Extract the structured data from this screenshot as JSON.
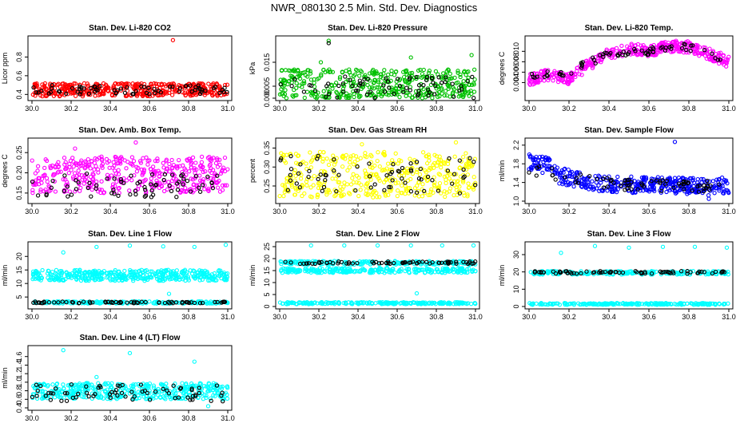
{
  "figure": {
    "title": "NWR_080130  2.5 Min. Std. Dev. Diagnostics"
  },
  "chart_data": [
    {
      "type": "scatter",
      "title": "Stan. Dev. Li-820 CO2",
      "ylabel": "Licor ppm",
      "xlim": [
        30.0,
        31.0
      ],
      "ylim": [
        0.36,
        1.0
      ],
      "xticks": [
        "30.0",
        "30.2",
        "30.4",
        "30.6",
        "30.8",
        "31.0"
      ],
      "yticks": [
        "0.4",
        "0.6",
        "0.8"
      ],
      "yticks_values": [
        0.4,
        0.6,
        0.8
      ],
      "color": "#ff0000",
      "series": [
        {
          "name": "main",
          "color": "#ff0000",
          "band_low": 0.38,
          "band_high": 0.52,
          "n": 420,
          "outliers": [
            [
              30.72,
              0.98
            ]
          ]
        },
        {
          "name": "black",
          "color": "#000000",
          "band_low": 0.4,
          "band_high": 0.5,
          "n": 70,
          "outliers": []
        }
      ]
    },
    {
      "type": "scatter",
      "title": "Stan. Dev. Li-820 Pressure",
      "ylabel": "kPa",
      "xlim": [
        30.0,
        31.0
      ],
      "ylim": [
        0.0,
        0.025
      ],
      "xticks": [
        "30.0",
        "30.2",
        "30.4",
        "30.6",
        "30.8",
        "31.0"
      ],
      "yticks": [
        "0.000",
        "0.005",
        "0.015"
      ],
      "yticks_values": [
        0.0,
        0.005,
        0.015
      ],
      "color": "#00c000",
      "series": [
        {
          "name": "main",
          "color": "#00c000",
          "band_low": 0.0,
          "band_high": 0.012,
          "n": 420,
          "outliers": [
            [
              30.25,
              0.024
            ],
            [
              30.98,
              0.018
            ],
            [
              30.67,
              0.017
            ],
            [
              30.21,
              0.015
            ]
          ]
        },
        {
          "name": "black",
          "color": "#000000",
          "band_low": 0.0,
          "band_high": 0.009,
          "n": 70,
          "outliers": [
            [
              30.25,
              0.023
            ]
          ]
        }
      ]
    },
    {
      "type": "scatter",
      "title": "Stan. Dev. Li-820 Temp.",
      "ylabel": "degrees C",
      "xlim": [
        30.0,
        31.0
      ],
      "ylim": [
        0.001,
        0.0125
      ],
      "xticks": [
        "30.0",
        "30.2",
        "30.4",
        "30.6",
        "30.8",
        "31.0"
      ],
      "yticks": [
        "0.004",
        "0.006",
        "0.008",
        "0.010"
      ],
      "yticks_values": [
        0.004,
        0.006,
        0.008,
        0.01
      ],
      "color": "#ff00ff",
      "series": [
        {
          "name": "main",
          "color": "#ff00ff",
          "curve": [
            [
              30.0,
              0.0045
            ],
            [
              30.1,
              0.0055
            ],
            [
              30.2,
              0.0048
            ],
            [
              30.3,
              0.0075
            ],
            [
              30.4,
              0.0095
            ],
            [
              30.5,
              0.0105
            ],
            [
              30.6,
              0.01
            ],
            [
              30.7,
              0.011
            ],
            [
              30.8,
              0.0108
            ],
            [
              30.9,
              0.0095
            ],
            [
              31.0,
              0.008
            ]
          ],
          "spread": 0.0022,
          "n": 420,
          "outliers": []
        },
        {
          "name": "black",
          "color": "#000000",
          "curve": [
            [
              30.0,
              0.0055
            ],
            [
              30.2,
              0.006
            ],
            [
              30.4,
              0.0095
            ],
            [
              30.6,
              0.01
            ],
            [
              30.8,
              0.0108
            ],
            [
              31.0,
              0.008
            ]
          ],
          "spread": 0.0015,
          "n": 70,
          "outliers": []
        }
      ]
    },
    {
      "type": "scatter",
      "title": "Stan. Dev. Amb. Box Temp.",
      "ylabel": "degrees C",
      "xlim": [
        30.0,
        31.0
      ],
      "ylim": [
        0.13,
        0.28
      ],
      "xticks": [
        "30.0",
        "30.2",
        "30.4",
        "30.6",
        "30.8",
        "31.0"
      ],
      "yticks": [
        "0.15",
        "0.20",
        "0.25"
      ],
      "yticks_values": [
        0.15,
        0.2,
        0.25
      ],
      "color": "#ff00ff",
      "series": [
        {
          "name": "main",
          "color": "#ff00ff",
          "band_low": 0.15,
          "band_high": 0.24,
          "n": 420,
          "outliers": [
            [
              30.53,
              0.275
            ],
            [
              30.22,
              0.26
            ]
          ]
        },
        {
          "name": "black",
          "color": "#000000",
          "band_low": 0.14,
          "band_high": 0.2,
          "n": 70,
          "outliers": []
        }
      ]
    },
    {
      "type": "scatter",
      "title": "Stan. Dev. Gas Stream RH",
      "ylabel": "percent",
      "xlim": [
        30.0,
        31.0
      ],
      "ylim": [
        0.21,
        0.37
      ],
      "xticks": [
        "30.0",
        "30.2",
        "30.4",
        "30.6",
        "30.8",
        "31.0"
      ],
      "yticks": [
        "0.25",
        "0.30",
        "0.35"
      ],
      "yticks_values": [
        0.25,
        0.3,
        0.35
      ],
      "color": "#ffff00",
      "series": [
        {
          "name": "main",
          "color": "#ffff00",
          "band_low": 0.22,
          "band_high": 0.34,
          "n": 420,
          "outliers": [
            [
              30.9,
              0.365
            ],
            [
              30.42,
              0.36
            ]
          ]
        },
        {
          "name": "black",
          "color": "#000000",
          "band_low": 0.23,
          "band_high": 0.33,
          "n": 70,
          "outliers": []
        }
      ]
    },
    {
      "type": "scatter",
      "title": "Stan. Dev. Sample Flow",
      "ylabel": "ml/min",
      "xlim": [
        30.0,
        31.0
      ],
      "ylim": [
        1.0,
        2.3
      ],
      "xticks": [
        "30.0",
        "30.2",
        "30.4",
        "30.6",
        "30.8",
        "31.0"
      ],
      "yticks": [
        "1.0",
        "1.4",
        "1.8",
        "2.2"
      ],
      "yticks_values": [
        1.0,
        1.4,
        1.8,
        2.2
      ],
      "color": "#0000ff",
      "series": [
        {
          "name": "main",
          "color": "#0000ff",
          "curve": [
            [
              30.0,
              1.85
            ],
            [
              30.1,
              1.75
            ],
            [
              30.15,
              1.55
            ],
            [
              30.3,
              1.4
            ],
            [
              30.5,
              1.35
            ],
            [
              30.7,
              1.35
            ],
            [
              30.9,
              1.3
            ],
            [
              31.0,
              1.35
            ]
          ],
          "spread": 0.35,
          "n": 420,
          "outliers": [
            [
              30.73,
              2.27
            ],
            [
              30.9,
              1.05
            ]
          ]
        },
        {
          "name": "black",
          "color": "#000000",
          "curve": [
            [
              30.0,
              1.7
            ],
            [
              30.2,
              1.5
            ],
            [
              30.5,
              1.35
            ],
            [
              31.0,
              1.3
            ]
          ],
          "spread": 0.25,
          "n": 70,
          "outliers": []
        }
      ]
    },
    {
      "type": "scatter",
      "title": "Stan. Dev. Line 1 Flow",
      "ylabel": "ml/min",
      "xlim": [
        30.0,
        31.0
      ],
      "ylim": [
        1.5,
        24.5
      ],
      "xticks": [
        "30.0",
        "30.2",
        "30.4",
        "30.6",
        "30.8",
        "31.0"
      ],
      "yticks": [
        "5",
        "10",
        "15",
        "20"
      ],
      "yticks_values": [
        5,
        10,
        15,
        20
      ],
      "color": "#00ffff",
      "series": [
        {
          "name": "upper",
          "color": "#00ffff",
          "band_low": 11.0,
          "band_high": 15.0,
          "n": 420,
          "outliers": [
            [
              30.16,
              21.5
            ],
            [
              30.33,
              23.5
            ],
            [
              30.5,
              24.0
            ],
            [
              30.67,
              23.7
            ],
            [
              30.83,
              23.5
            ],
            [
              30.99,
              24.3
            ],
            [
              30.7,
              6.2
            ]
          ]
        },
        {
          "name": "lower",
          "color": "#00ffff",
          "band_low": 2.6,
          "band_high": 3.4,
          "n": 200,
          "outliers": []
        },
        {
          "name": "black",
          "color": "#000000",
          "band_low": 2.7,
          "band_high": 3.3,
          "n": 70,
          "outliers": []
        }
      ]
    },
    {
      "type": "scatter",
      "title": "Stan. Dev. Line 2 Flow",
      "ylabel": "ml/min",
      "xlim": [
        30.0,
        31.0
      ],
      "ylim": [
        0.0,
        26.0
      ],
      "xticks": [
        "30.0",
        "30.2",
        "30.4",
        "30.6",
        "30.8",
        "31.0"
      ],
      "yticks": [
        "0",
        "5",
        "10",
        "15",
        "20",
        "25"
      ],
      "yticks_values": [
        0,
        5,
        10,
        15,
        20,
        25
      ],
      "color": "#00ffff",
      "series": [
        {
          "name": "top",
          "color": "#00ffff",
          "band_low": 17.5,
          "band_high": 19.0,
          "n": 200,
          "outliers": []
        },
        {
          "name": "middle",
          "color": "#00ffff",
          "band_low": 14.0,
          "band_high": 16.0,
          "n": 260,
          "outliers": [
            [
              30.7,
              5.5
            ],
            [
              30.16,
              25.5
            ],
            [
              30.33,
              25.5
            ],
            [
              30.5,
              25.5
            ],
            [
              30.67,
              25.5
            ],
            [
              30.83,
              25.5
            ],
            [
              30.99,
              25.5
            ]
          ]
        },
        {
          "name": "bottom",
          "color": "#00ffff",
          "band_low": 1.0,
          "band_high": 1.8,
          "n": 220,
          "outliers": []
        },
        {
          "name": "black",
          "color": "#000000",
          "band_low": 17.8,
          "band_high": 18.8,
          "n": 70,
          "outliers": []
        }
      ]
    },
    {
      "type": "scatter",
      "title": "Stan. Dev. Line 3 Flow",
      "ylabel": "ml/min",
      "xlim": [
        30.0,
        31.0
      ],
      "ylim": [
        0.0,
        36.0
      ],
      "xticks": [
        "30.0",
        "30.2",
        "30.4",
        "30.6",
        "30.8",
        "31.0"
      ],
      "yticks": [
        "0",
        "10",
        "20",
        "30"
      ],
      "yticks_values": [
        0,
        10,
        20,
        30
      ],
      "color": "#00ffff",
      "series": [
        {
          "name": "upper",
          "color": "#00ffff",
          "band_low": 18.5,
          "band_high": 20.5,
          "n": 220,
          "outliers": [
            [
              30.16,
              31.0
            ],
            [
              30.33,
              35.0
            ],
            [
              30.5,
              34.0
            ],
            [
              30.67,
              34.5
            ],
            [
              30.83,
              34.5
            ],
            [
              30.99,
              34.0
            ]
          ]
        },
        {
          "name": "lower",
          "color": "#00ffff",
          "band_low": 1.0,
          "band_high": 2.0,
          "n": 220,
          "outliers": []
        },
        {
          "name": "black",
          "color": "#000000",
          "band_low": 19.0,
          "band_high": 20.5,
          "n": 70,
          "outliers": []
        }
      ]
    },
    {
      "type": "scatter",
      "title": "Stan. Dev. Line 4 (LT) Flow",
      "ylabel": "ml/min",
      "xlim": [
        30.0,
        31.0
      ],
      "ylim": [
        0.4,
        1.8
      ],
      "xticks": [
        "30.0",
        "30.2",
        "30.4",
        "30.6",
        "30.8",
        "31.0"
      ],
      "yticks": [
        "0.4",
        "0.6",
        "0.8",
        "1.0",
        "1.2",
        "1.4",
        "1.6"
      ],
      "yticks_values": [
        0.4,
        0.6,
        0.8,
        1.0,
        1.2,
        1.4,
        1.6
      ],
      "color": "#00ffff",
      "series": [
        {
          "name": "main",
          "color": "#00ffff",
          "band_low": 0.6,
          "band_high": 0.98,
          "n": 420,
          "outliers": [
            [
              30.16,
              1.75
            ],
            [
              30.5,
              1.68
            ],
            [
              30.83,
              1.48
            ],
            [
              30.33,
              1.12
            ],
            [
              30.9,
              0.44
            ]
          ]
        },
        {
          "name": "black",
          "color": "#000000",
          "band_low": 0.55,
          "band_high": 0.95,
          "n": 70,
          "outliers": []
        }
      ]
    }
  ]
}
